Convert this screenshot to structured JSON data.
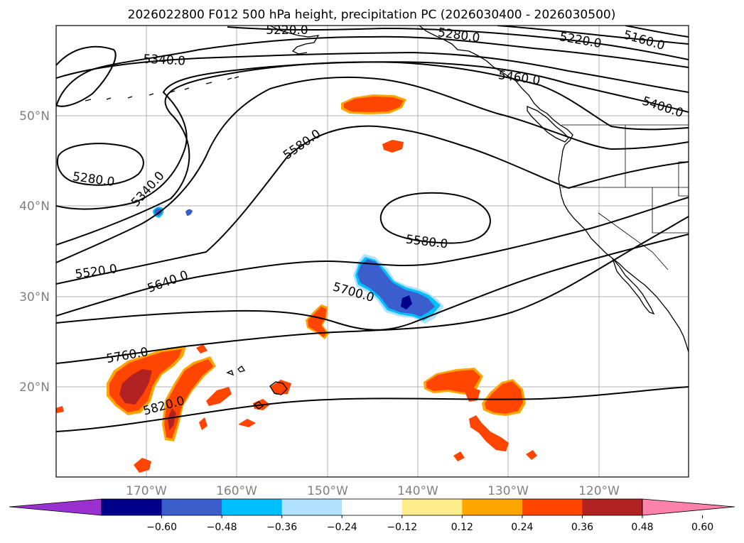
{
  "title": "2026022800 F012 500 hPa height, precipitation PC (2026030400 - 2026030500)",
  "lon_labels": [
    "170°W",
    "160°W",
    "150°W",
    "140°W",
    "130°W",
    "120°W"
  ],
  "lat_labels": [
    "50°N",
    "40°N",
    "30°N",
    "20°N"
  ],
  "contour_labels": [
    "5220.0",
    "5280.0",
    "5160.0",
    "5220.0",
    "5340.0",
    "5460.0",
    "5400.0",
    "5580.0",
    "5280.0",
    "5340.0",
    "5580.0",
    "5520.0",
    "5640.0",
    "5700.0",
    "5760.0",
    "5820.0"
  ],
  "colorbar": {
    "colors": [
      "#9b30d0",
      "#00008b",
      "#3a5fcd",
      "#00bfff",
      "#b0e2ff",
      "#ffffff",
      "#ffec8b",
      "#ffa500",
      "#ff4500",
      "#b22222",
      "#ff82ab"
    ],
    "ticks": [
      "−0.60",
      "−0.48",
      "−0.36",
      "−0.24",
      "−0.12",
      "0.12",
      "0.24",
      "0.36",
      "0.48",
      "0.60"
    ]
  }
}
